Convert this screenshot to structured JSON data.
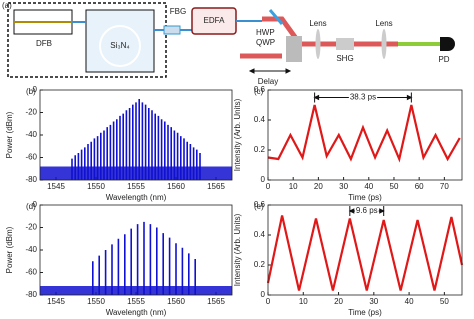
{
  "diagram": {
    "panel": "(a)",
    "dfb": "DFB",
    "chip": "Si₃N₄",
    "fbg": "FBG",
    "edfa": "EDFA",
    "hwp": "HWP",
    "qwp": "QWP",
    "delay": "Delay",
    "lens1": "Lens",
    "shg": "SHG",
    "lens2": "Lens",
    "pd": "PD"
  },
  "chart_data": [
    {
      "type": "stem",
      "panel": "(b)",
      "xlabel": "Wavelength (nm)",
      "ylabel": "Power (dBm)",
      "color": "#1010d0",
      "x": [
        1547.0,
        1547.4,
        1547.8,
        1548.2,
        1548.6,
        1549.0,
        1549.4,
        1549.8,
        1550.2,
        1550.6,
        1551.0,
        1551.4,
        1551.8,
        1552.2,
        1552.6,
        1553.0,
        1553.4,
        1553.8,
        1554.2,
        1554.6,
        1555.0,
        1555.4,
        1555.8,
        1556.2,
        1556.6,
        1557.0,
        1557.4,
        1557.8,
        1558.2,
        1558.6,
        1559.0,
        1559.4,
        1559.8,
        1560.2,
        1560.6,
        1561.0,
        1561.4,
        1561.8,
        1562.2,
        1562.6,
        1563.0
      ],
      "values": [
        -61,
        -58,
        -56,
        -53,
        -51,
        -48,
        -46,
        -43,
        -41,
        -38,
        -36,
        -33,
        -31,
        -28,
        -26,
        -23,
        -21,
        -18,
        -16,
        -13,
        -11,
        -8,
        -11,
        -13,
        -16,
        -18,
        -21,
        -23,
        -26,
        -28,
        -31,
        -33,
        -36,
        -38,
        -41,
        -43,
        -46,
        -48,
        -51,
        -53,
        -56
      ],
      "noise_floor": -68,
      "xlim": [
        1543,
        1567
      ],
      "ylim": [
        -80,
        0
      ],
      "xticks": [
        1545,
        1550,
        1555,
        1560,
        1565
      ],
      "yticks": [
        -80,
        -60,
        -40,
        -20,
        0
      ]
    },
    {
      "type": "line",
      "panel": "(c)",
      "xlabel": "Time (ps)",
      "ylabel": "Intensity (Arb. Units)",
      "color": "#e01818",
      "x": [
        0,
        4.1,
        8.9,
        13.7,
        18.5,
        23.3,
        28.1,
        32.9,
        37.7,
        42.5,
        47.3,
        52.1,
        56.9,
        61.7,
        66.5,
        71.3,
        76.1
      ],
      "values": [
        0.15,
        0.14,
        0.3,
        0.15,
        0.5,
        0.16,
        0.3,
        0.14,
        0.35,
        0.15,
        0.33,
        0.14,
        0.5,
        0.15,
        0.3,
        0.14,
        0.28
      ],
      "annotation": {
        "text": "38.3 ps",
        "x": [
          18.5,
          56.9
        ],
        "y": 0.55
      },
      "xlim": [
        0,
        77
      ],
      "ylim": [
        0,
        0.6
      ],
      "xticks": [
        0,
        10,
        20,
        30,
        40,
        50,
        60,
        70
      ],
      "yticks": [
        0,
        0.2,
        0.4,
        0.6
      ]
    },
    {
      "type": "stem",
      "panel": "(d)",
      "xlabel": "Wavelength (nm)",
      "ylabel": "Power (dBm)",
      "color": "#1010d0",
      "x": [
        1549.6,
        1550.4,
        1551.2,
        1552.0,
        1552.8,
        1553.6,
        1554.4,
        1555.2,
        1556.0,
        1556.8,
        1557.6,
        1558.4,
        1559.2,
        1560.0,
        1560.8,
        1561.6,
        1562.4
      ],
      "values": [
        -50,
        -45,
        -40,
        -35,
        -30,
        -26,
        -21,
        -17,
        -15,
        -17,
        -20,
        -25,
        -29,
        -34,
        -38,
        -43,
        -48
      ],
      "noise_floor": -72,
      "xlim": [
        1543,
        1567
      ],
      "ylim": [
        -80,
        0
      ],
      "xticks": [
        1545,
        1550,
        1555,
        1560,
        1565
      ],
      "yticks": [
        -80,
        -60,
        -40,
        -20,
        0
      ]
    },
    {
      "type": "line",
      "panel": "(e)",
      "xlabel": "Time (ps)",
      "ylabel": "Intensity (Arb. Units)",
      "color": "#e01818",
      "x": [
        0,
        4,
        8.8,
        13.6,
        18.4,
        23.2,
        28,
        32.8,
        37.6,
        42.4,
        47.2,
        52,
        55
      ],
      "values": [
        0.08,
        0.53,
        0.03,
        0.51,
        0.03,
        0.51,
        0.03,
        0.5,
        0.03,
        0.5,
        0.03,
        0.52,
        0.2
      ],
      "annotation": {
        "text": "9.6 ps",
        "x": [
          23.2,
          32.8
        ],
        "y": 0.56
      },
      "xlim": [
        0,
        55
      ],
      "ylim": [
        0,
        0.6
      ],
      "xticks": [
        0,
        10,
        20,
        30,
        40,
        50
      ],
      "yticks": [
        0,
        0.2,
        0.4,
        0.6
      ]
    }
  ]
}
